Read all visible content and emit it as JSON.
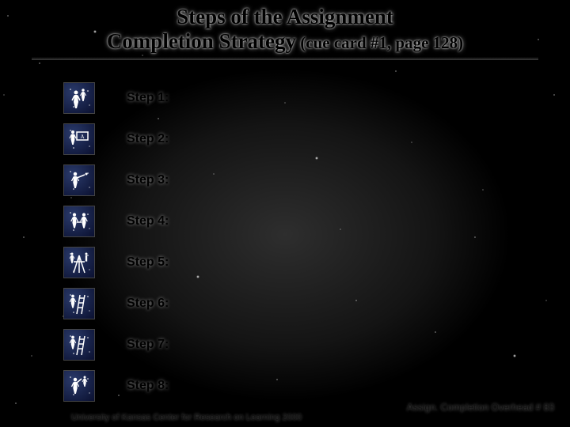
{
  "title": {
    "line1": "Steps of the Assignment",
    "line2_bold": "Completion Strategy",
    "line2_paren": " (cue card #1, page 128)"
  },
  "steps": [
    {
      "label": "Step 1:",
      "icon": "two-figures"
    },
    {
      "label": "Step 2:",
      "icon": "chalkboard"
    },
    {
      "label": "Step 3:",
      "icon": "pointing"
    },
    {
      "label": "Step 4:",
      "icon": "handshake"
    },
    {
      "label": "Step 5:",
      "icon": "easel"
    },
    {
      "label": "Step 6:",
      "icon": "ladder"
    },
    {
      "label": "Step 7:",
      "icon": "ladder"
    },
    {
      "label": "Step 8:",
      "icon": "wave"
    }
  ],
  "footer": {
    "left": "University of Kansas Center for Research on Learning  2000",
    "right": "Assign. Completion Overhead #  83"
  },
  "colors": {
    "icon_bg_dark": "#0a1030",
    "icon_bg_light": "#2a3a6a",
    "figure": "#ffffff"
  }
}
